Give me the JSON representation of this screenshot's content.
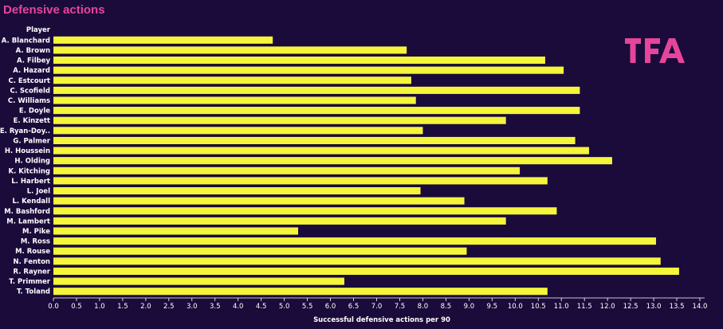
{
  "colors": {
    "background": "#1a0b3b",
    "bar": "#f5f53a",
    "title": "#e6459b",
    "text": "#ffffff",
    "logo": "#e6459b"
  },
  "logo": {
    "text": "TFA"
  },
  "chart_data": {
    "type": "bar",
    "orientation": "horizontal",
    "title": "Defensive actions",
    "category_header": "Player",
    "xlabel": "Successful defensive actions per 90",
    "xlim": [
      0,
      14.0
    ],
    "xticks": [
      "0.0",
      "0.5",
      "1.0",
      "1.5",
      "2.0",
      "2.5",
      "3.0",
      "3.5",
      "4.0",
      "4.5",
      "5.0",
      "5.5",
      "6.0",
      "6.5",
      "7.0",
      "7.5",
      "8.0",
      "8.5",
      "9.0",
      "9.5",
      "10.0",
      "10.5",
      "11.0",
      "11.5",
      "12.0",
      "12.5",
      "13.0",
      "13.5",
      "14.0"
    ],
    "grid": false,
    "categories": [
      "A. Blanchard",
      "A. Brown",
      "A. Filbey",
      "A. Hazard",
      "C. Estcourt",
      "C. Scofield",
      "C. Williams",
      "E. Doyle",
      "E. Kinzett",
      "E. Ryan-Doy..",
      "G. Palmer",
      "H. Houssein",
      "H. Olding",
      "K. Kitching",
      "L. Harbert",
      "L. Joel",
      "L. Kendall",
      "M. Bashford",
      "M. Lambert",
      "M. Pike",
      "M. Ross",
      "M. Rouse",
      "N. Fenton",
      "R. Rayner",
      "T. Primmer",
      "T. Toland"
    ],
    "values": [
      4.75,
      7.65,
      10.65,
      11.05,
      7.75,
      11.4,
      7.85,
      11.4,
      9.8,
      8.0,
      11.3,
      11.6,
      12.1,
      10.1,
      10.7,
      7.95,
      8.9,
      10.9,
      9.8,
      5.3,
      13.05,
      8.95,
      13.15,
      13.55,
      6.3,
      10.7
    ]
  }
}
